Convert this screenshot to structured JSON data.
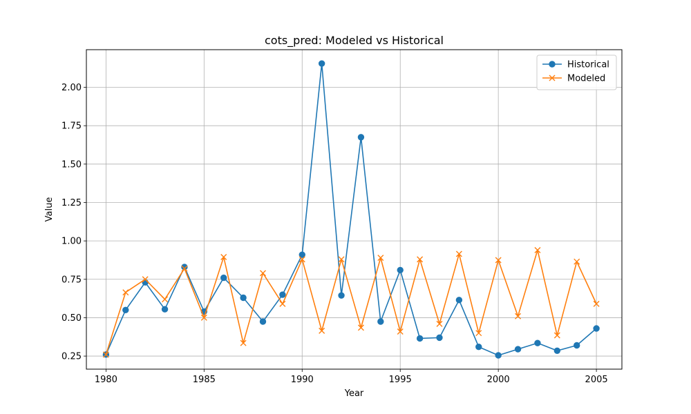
{
  "chart_data": {
    "type": "line",
    "title": "cots_pred: Modeled vs Historical",
    "xlabel": "Year",
    "ylabel": "Value",
    "xlim": [
      1979.0,
      2006.3
    ],
    "ylim": [
      0.165,
      2.245
    ],
    "x_ticks": [
      1980,
      1985,
      1990,
      1995,
      2000,
      2005
    ],
    "y_ticks": [
      0.25,
      0.5,
      0.75,
      1.0,
      1.25,
      1.5,
      1.75,
      2.0
    ],
    "y_tick_labels": [
      "0.25",
      "0.50",
      "0.75",
      "1.00",
      "1.25",
      "1.50",
      "1.75",
      "2.00"
    ],
    "grid": true,
    "legend_position": "top-right",
    "x": [
      1980,
      1981,
      1982,
      1983,
      1984,
      1985,
      1986,
      1987,
      1988,
      1989,
      1990,
      1991,
      1992,
      1993,
      1994,
      1995,
      1996,
      1997,
      1998,
      1999,
      2000,
      2001,
      2002,
      2003,
      2004,
      2005
    ],
    "series": [
      {
        "name": "Historical",
        "color": "#1f77b4",
        "marker": "circle",
        "values": [
          0.26,
          0.55,
          0.73,
          0.555,
          0.83,
          0.54,
          0.76,
          0.63,
          0.475,
          0.65,
          0.91,
          2.155,
          0.645,
          1.675,
          0.475,
          0.81,
          0.365,
          0.37,
          0.615,
          0.31,
          0.255,
          0.295,
          0.335,
          0.285,
          0.32,
          0.43
        ]
      },
      {
        "name": "Modeled",
        "color": "#ff7f0e",
        "marker": "x",
        "values": [
          0.26,
          0.665,
          0.75,
          0.62,
          0.82,
          0.5,
          0.895,
          0.335,
          0.79,
          0.59,
          0.88,
          0.415,
          0.88,
          0.435,
          0.89,
          0.41,
          0.88,
          0.46,
          0.915,
          0.4,
          0.875,
          0.51,
          0.94,
          0.385,
          0.865,
          0.59
        ]
      }
    ]
  }
}
